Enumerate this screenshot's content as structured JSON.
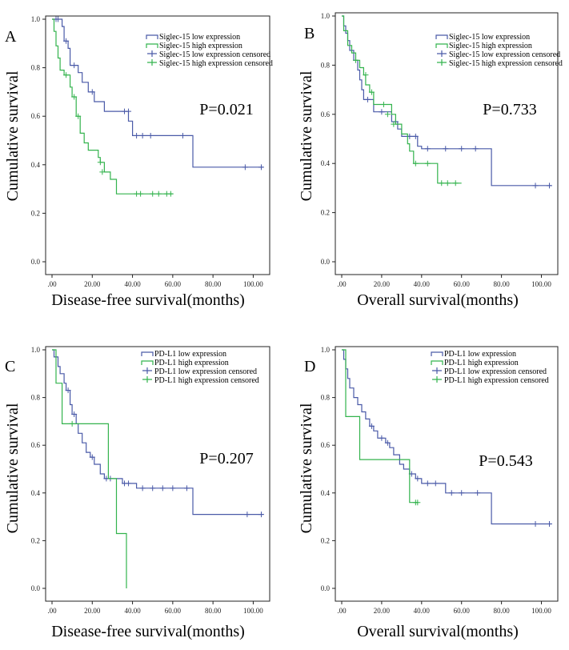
{
  "chart_data": [
    {
      "type": "line",
      "panel_label": "A",
      "p_value": "P=0.021",
      "xlabel": "Disease-free survival(months)",
      "ylabel": "Cumulative survival",
      "x_ticks": [
        ".00",
        "20.00",
        "40.00",
        "60.00",
        "80.00",
        "100.00"
      ],
      "y_ticks": [
        "0.0",
        "0.2",
        "0.4",
        "0.6",
        "0.8",
        "1.0"
      ],
      "xlim": [
        0,
        105
      ],
      "ylim": [
        0,
        1
      ],
      "legend": [
        "Siglec-15 low expression",
        "Siglec-15 high expression",
        "Siglec-15 low expression censored",
        "Siglec-15 high expression censored"
      ],
      "series": [
        {
          "name": "Siglec-15 low expression",
          "color": "#4a5aa8",
          "steps": [
            [
              0,
              1.0
            ],
            [
              5,
              0.97
            ],
            [
              6,
              0.91
            ],
            [
              8,
              0.88
            ],
            [
              9,
              0.81
            ],
            [
              13,
              0.78
            ],
            [
              15,
              0.74
            ],
            [
              18,
              0.7
            ],
            [
              21,
              0.66
            ],
            [
              26,
              0.62
            ],
            [
              38,
              0.58
            ],
            [
              40,
              0.52
            ],
            [
              70,
              0.39
            ],
            [
              105,
              0.39
            ]
          ],
          "censored": [
            [
              2,
              1.0
            ],
            [
              3,
              1.0
            ],
            [
              7,
              0.91
            ],
            [
              11,
              0.81
            ],
            [
              20,
              0.7
            ],
            [
              36,
              0.62
            ],
            [
              38,
              0.62
            ],
            [
              42,
              0.52
            ],
            [
              45,
              0.52
            ],
            [
              49,
              0.52
            ],
            [
              65,
              0.52
            ],
            [
              96,
              0.39
            ],
            [
              104,
              0.39
            ]
          ]
        },
        {
          "name": "Siglec-15 high expression",
          "color": "#33b34d",
          "steps": [
            [
              0,
              1.0
            ],
            [
              1,
              0.95
            ],
            [
              2,
              0.89
            ],
            [
              3,
              0.84
            ],
            [
              4,
              0.79
            ],
            [
              6,
              0.77
            ],
            [
              9,
              0.72
            ],
            [
              10,
              0.68
            ],
            [
              12,
              0.6
            ],
            [
              14,
              0.53
            ],
            [
              16,
              0.49
            ],
            [
              18,
              0.46
            ],
            [
              23,
              0.43
            ],
            [
              24,
              0.41
            ],
            [
              26,
              0.37
            ],
            [
              29,
              0.34
            ],
            [
              32,
              0.28
            ],
            [
              60,
              0.28
            ]
          ],
          "censored": [
            [
              7,
              0.77
            ],
            [
              11,
              0.68
            ],
            [
              13,
              0.6
            ],
            [
              24,
              0.41
            ],
            [
              25,
              0.37
            ],
            [
              42,
              0.28
            ],
            [
              44,
              0.28
            ],
            [
              50,
              0.28
            ],
            [
              53,
              0.28
            ],
            [
              57,
              0.28
            ],
            [
              59,
              0.28
            ]
          ]
        }
      ]
    },
    {
      "type": "line",
      "panel_label": "B",
      "p_value": "P=0.733",
      "xlabel": "Overall survival(months)",
      "ylabel": "Cumulative survival",
      "x_ticks": [
        ".00",
        "20.00",
        "40.00",
        "60.00",
        "80.00",
        "100.00"
      ],
      "y_ticks": [
        "0.0",
        "0.2",
        "0.4",
        "0.6",
        "0.8",
        "1.0"
      ],
      "xlim": [
        0,
        105
      ],
      "ylim": [
        0,
        1
      ],
      "legend": [
        "Siglec-15 low expression",
        "Siglec-15 high expression",
        "Siglec-15 low expression censored",
        "Siglec-15 high expression censored"
      ],
      "series": [
        {
          "name": "Siglec-15 low expression",
          "color": "#4a5aa8",
          "steps": [
            [
              0,
              1.0
            ],
            [
              1,
              0.96
            ],
            [
              2,
              0.93
            ],
            [
              3,
              0.9
            ],
            [
              4,
              0.86
            ],
            [
              6,
              0.82
            ],
            [
              8,
              0.78
            ],
            [
              9,
              0.74
            ],
            [
              10,
              0.7
            ],
            [
              11,
              0.66
            ],
            [
              16,
              0.61
            ],
            [
              25,
              0.57
            ],
            [
              28,
              0.54
            ],
            [
              30,
              0.51
            ],
            [
              38,
              0.47
            ],
            [
              40,
              0.46
            ],
            [
              75,
              0.31
            ],
            [
              105,
              0.31
            ]
          ],
          "censored": [
            [
              13,
              0.66
            ],
            [
              20,
              0.61
            ],
            [
              27,
              0.57
            ],
            [
              34,
              0.51
            ],
            [
              37,
              0.51
            ],
            [
              43,
              0.46
            ],
            [
              52,
              0.46
            ],
            [
              60,
              0.46
            ],
            [
              67,
              0.46
            ],
            [
              97,
              0.31
            ],
            [
              104,
              0.31
            ]
          ]
        },
        {
          "name": "Siglec-15 high expression",
          "color": "#33b34d",
          "steps": [
            [
              0,
              1.0
            ],
            [
              1,
              0.94
            ],
            [
              3,
              0.88
            ],
            [
              5,
              0.85
            ],
            [
              7,
              0.82
            ],
            [
              9,
              0.79
            ],
            [
              11,
              0.76
            ],
            [
              12,
              0.72
            ],
            [
              14,
              0.69
            ],
            [
              16,
              0.64
            ],
            [
              25,
              0.6
            ],
            [
              27,
              0.56
            ],
            [
              30,
              0.52
            ],
            [
              33,
              0.48
            ],
            [
              34,
              0.45
            ],
            [
              36,
              0.4
            ],
            [
              48,
              0.32
            ],
            [
              60,
              0.32
            ]
          ],
          "censored": [
            [
              7,
              0.82
            ],
            [
              12,
              0.76
            ],
            [
              15,
              0.69
            ],
            [
              21,
              0.64
            ],
            [
              23,
              0.6
            ],
            [
              26,
              0.56
            ],
            [
              37,
              0.4
            ],
            [
              43,
              0.4
            ],
            [
              50,
              0.32
            ],
            [
              53,
              0.32
            ],
            [
              57,
              0.32
            ]
          ]
        }
      ]
    },
    {
      "type": "line",
      "panel_label": "C",
      "p_value": "P=0.207",
      "xlabel": "Disease-free survival(months)",
      "ylabel": "Cumulative survival",
      "x_ticks": [
        ".00",
        "20.00",
        "40.00",
        "60.00",
        "80.00",
        "100.00"
      ],
      "y_ticks": [
        "0.0",
        "0.2",
        "0.4",
        "0.6",
        "0.8",
        "1.0"
      ],
      "xlim": [
        0,
        105
      ],
      "ylim": [
        0,
        1
      ],
      "legend": [
        "PD-L1 low expression",
        "PD-L1 high expression",
        "PD-L1 low expression censored",
        "PD-L1 high expression censored"
      ],
      "series": [
        {
          "name": "PD-L1 low expression",
          "color": "#4a5aa8",
          "steps": [
            [
              0,
              1.0
            ],
            [
              1,
              0.97
            ],
            [
              3,
              0.93
            ],
            [
              4,
              0.9
            ],
            [
              6,
              0.86
            ],
            [
              7,
              0.83
            ],
            [
              9,
              0.77
            ],
            [
              10,
              0.73
            ],
            [
              12,
              0.69
            ],
            [
              13,
              0.65
            ],
            [
              15,
              0.61
            ],
            [
              17,
              0.57
            ],
            [
              19,
              0.55
            ],
            [
              21,
              0.52
            ],
            [
              24,
              0.48
            ],
            [
              26,
              0.46
            ],
            [
              35,
              0.44
            ],
            [
              42,
              0.42
            ],
            [
              70,
              0.31
            ],
            [
              105,
              0.31
            ]
          ],
          "censored": [
            [
              8,
              0.83
            ],
            [
              11,
              0.73
            ],
            [
              20,
              0.55
            ],
            [
              27,
              0.46
            ],
            [
              29,
              0.46
            ],
            [
              36,
              0.44
            ],
            [
              38,
              0.44
            ],
            [
              45,
              0.42
            ],
            [
              50,
              0.42
            ],
            [
              55,
              0.42
            ],
            [
              60,
              0.42
            ],
            [
              67,
              0.42
            ],
            [
              97,
              0.31
            ],
            [
              104,
              0.31
            ]
          ]
        },
        {
          "name": "PD-L1 high expression",
          "color": "#33b34d",
          "steps": [
            [
              0,
              1.0
            ],
            [
              2,
              0.86
            ],
            [
              5,
              0.69
            ],
            [
              28,
              0.46
            ],
            [
              32,
              0.23
            ],
            [
              37,
              0.0
            ]
          ],
          "censored": [
            [
              10,
              0.69
            ]
          ]
        }
      ]
    },
    {
      "type": "line",
      "panel_label": "D",
      "p_value": "P=0.543",
      "xlabel": "Overall survival(months)",
      "ylabel": "Cumulative survival",
      "x_ticks": [
        ".00",
        "20.00",
        "40.00",
        "60.00",
        "80.00",
        "100.00"
      ],
      "y_ticks": [
        "0.0",
        "0.2",
        "0.4",
        "0.6",
        "0.8",
        "1.0"
      ],
      "xlim": [
        0,
        105
      ],
      "ylim": [
        0,
        1
      ],
      "legend": [
        "PD-L1 low expression",
        "PD-L1 high expression",
        "PD-L1 low expression censored",
        "PD-L1 high expression censored"
      ],
      "series": [
        {
          "name": "PD-L1 low expression",
          "color": "#4a5aa8",
          "steps": [
            [
              0,
              1.0
            ],
            [
              1,
              0.96
            ],
            [
              2,
              0.92
            ],
            [
              3,
              0.88
            ],
            [
              4,
              0.84
            ],
            [
              6,
              0.8
            ],
            [
              8,
              0.77
            ],
            [
              10,
              0.74
            ],
            [
              12,
              0.71
            ],
            [
              14,
              0.68
            ],
            [
              16,
              0.66
            ],
            [
              18,
              0.63
            ],
            [
              22,
              0.61
            ],
            [
              24,
              0.59
            ],
            [
              26,
              0.56
            ],
            [
              29,
              0.52
            ],
            [
              31,
              0.5
            ],
            [
              34,
              0.48
            ],
            [
              37,
              0.46
            ],
            [
              40,
              0.44
            ],
            [
              52,
              0.4
            ],
            [
              75,
              0.27
            ],
            [
              105,
              0.27
            ]
          ],
          "censored": [
            [
              15,
              0.68
            ],
            [
              20,
              0.63
            ],
            [
              23,
              0.61
            ],
            [
              35,
              0.48
            ],
            [
              38,
              0.46
            ],
            [
              43,
              0.44
            ],
            [
              47,
              0.44
            ],
            [
              55,
              0.4
            ],
            [
              60,
              0.4
            ],
            [
              68,
              0.4
            ],
            [
              97,
              0.27
            ],
            [
              104,
              0.27
            ]
          ]
        },
        {
          "name": "PD-L1 high expression",
          "color": "#33b34d",
          "steps": [
            [
              0,
              1.0
            ],
            [
              2,
              0.72
            ],
            [
              9,
              0.54
            ],
            [
              34,
              0.36
            ],
            [
              38,
              0.36
            ]
          ],
          "censored": [
            [
              37,
              0.36
            ],
            [
              38,
              0.36
            ]
          ]
        }
      ]
    }
  ]
}
